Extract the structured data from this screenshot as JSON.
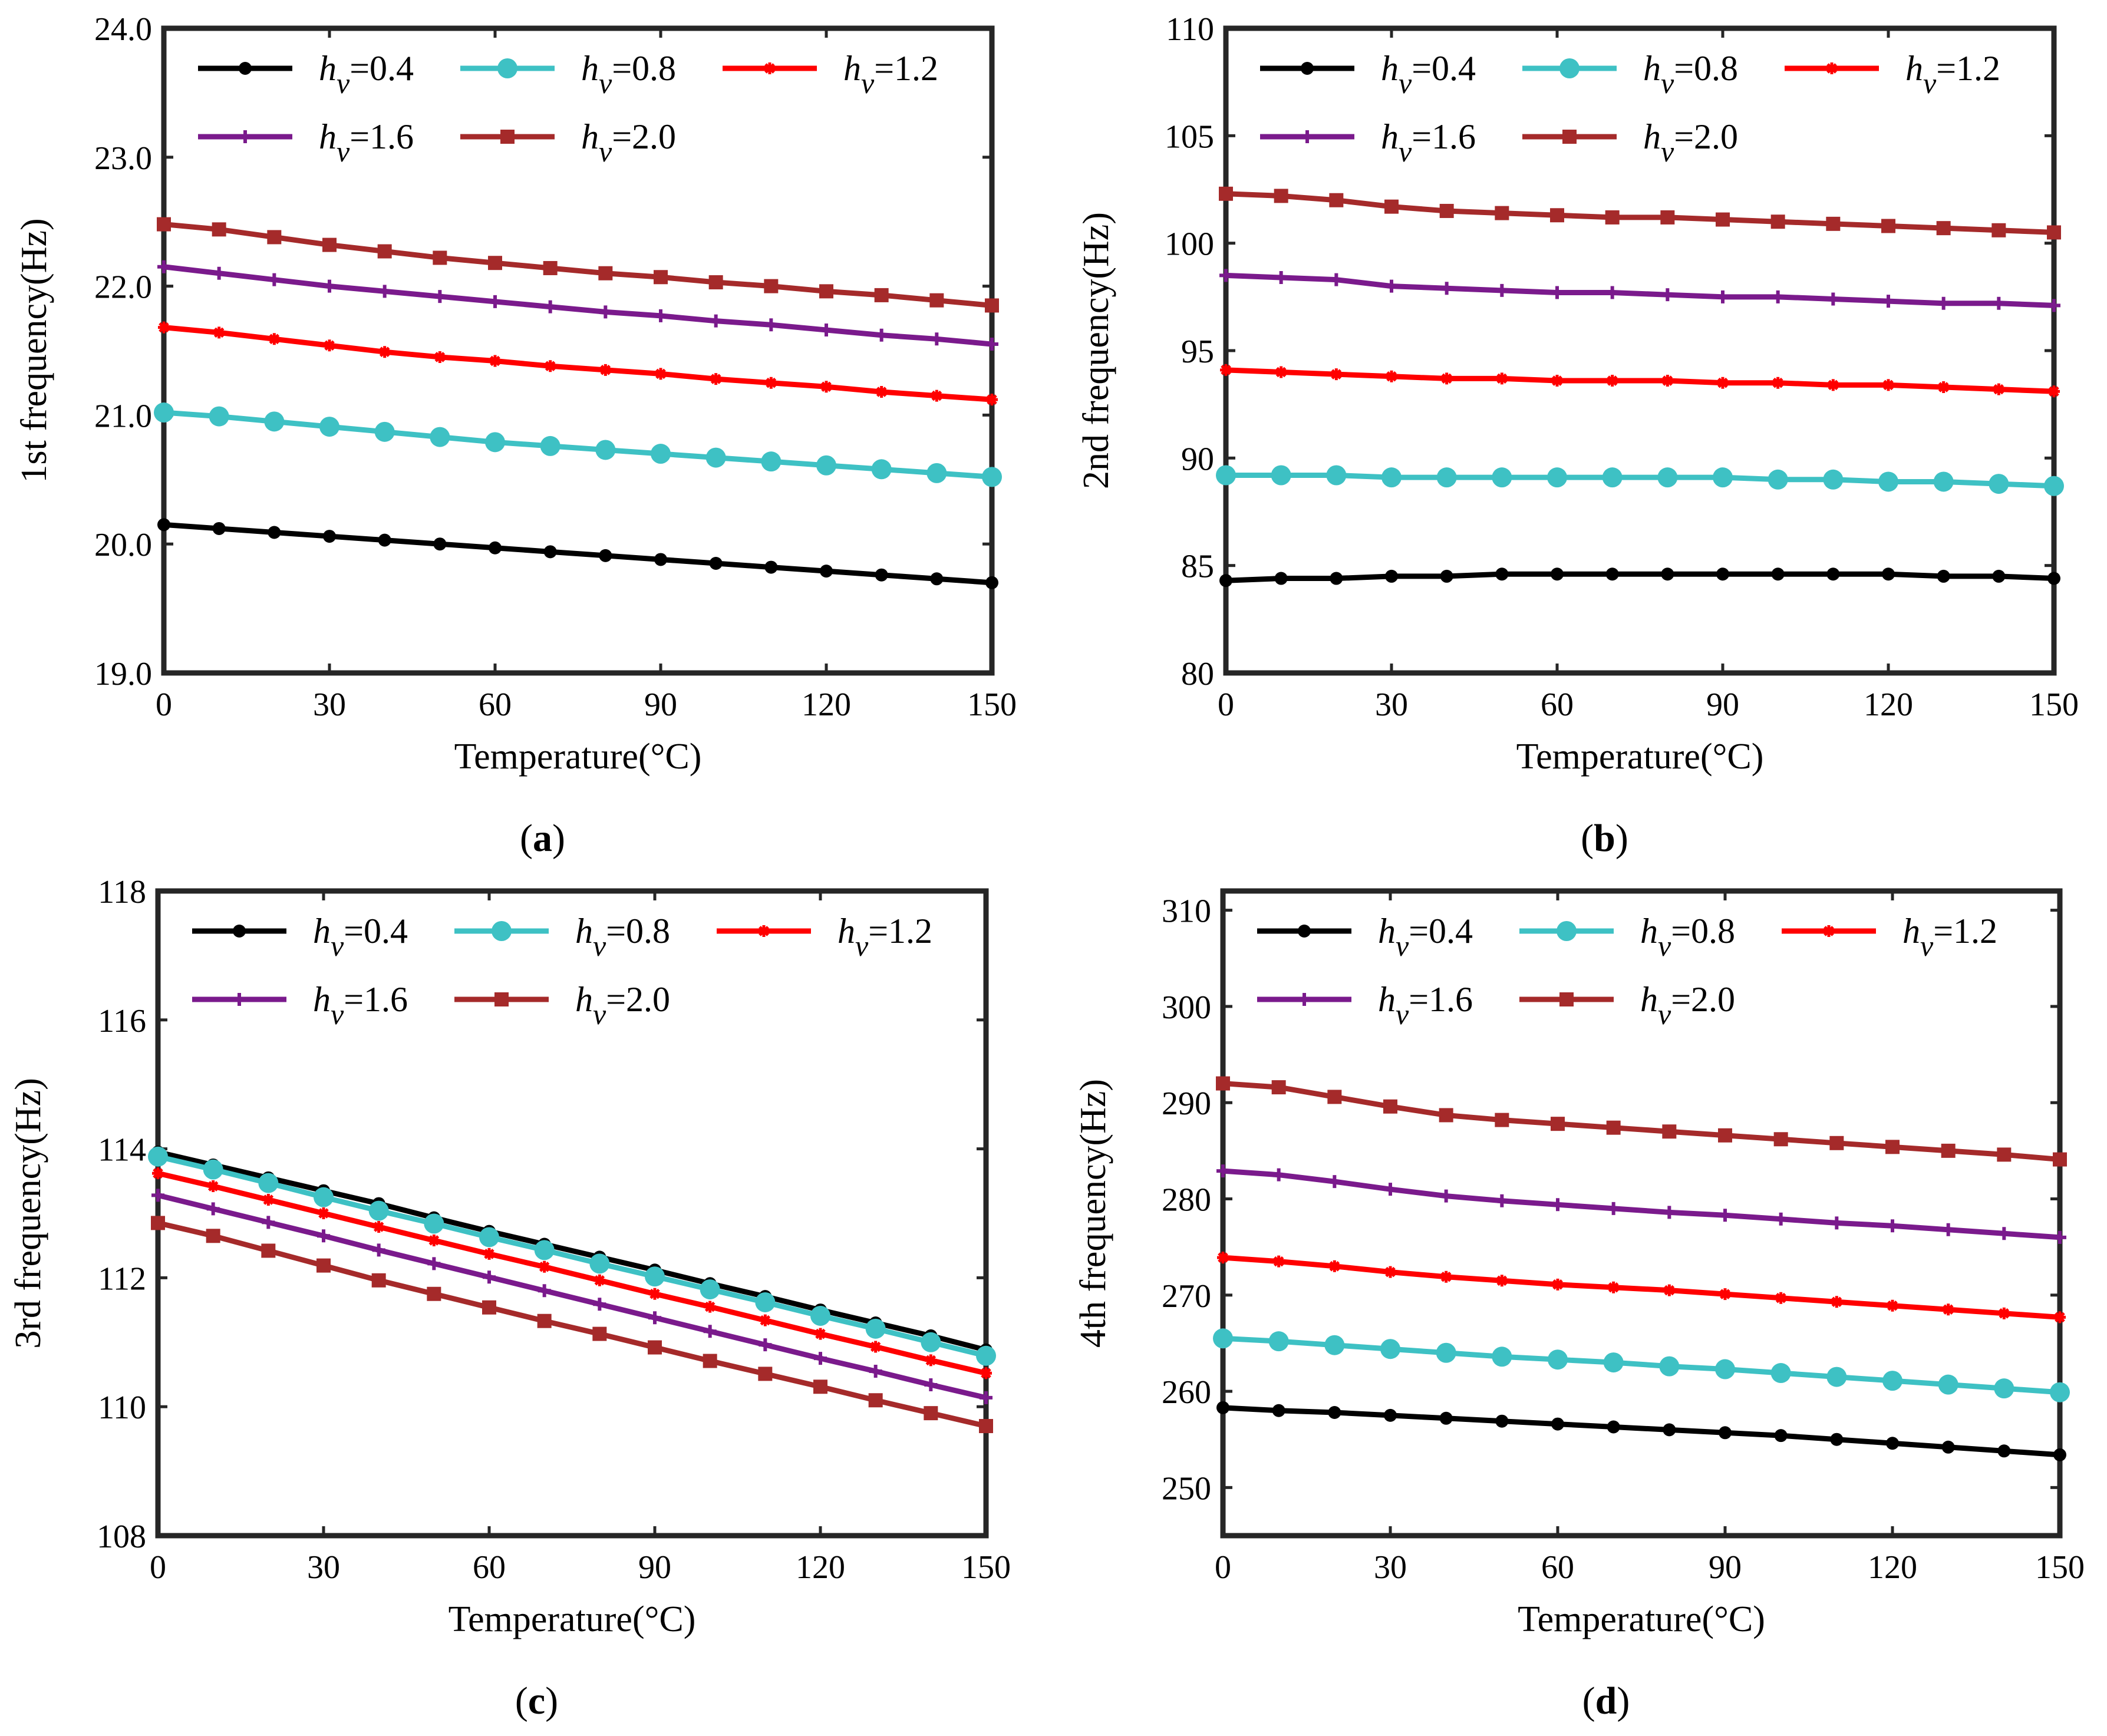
{
  "legend_prefix": "h",
  "legend_sub": "v",
  "series_styles": [
    {
      "name": "h_v=0.4",
      "color": "#000000",
      "marker": "dot"
    },
    {
      "name": "h_v=0.8",
      "color": "#3EC1C4",
      "marker": "circle"
    },
    {
      "name": "h_v=1.2",
      "color": "#FF0000",
      "marker": "star"
    },
    {
      "name": "h_v=1.6",
      "color": "#7A1A8C",
      "marker": "plus"
    },
    {
      "name": "h_v=2.0",
      "color": "#A52A2A",
      "marker": "square"
    }
  ],
  "chart_data": [
    {
      "type": "line",
      "panel_label": "a",
      "title": "",
      "xlabel": "Temperature(°C)",
      "ylabel": "1st frequency(Hz)",
      "xlim": [
        0,
        150
      ],
      "ylim": [
        19.0,
        24.0
      ],
      "xticks": [
        0,
        30,
        60,
        90,
        120,
        150
      ],
      "yticks": [
        19.0,
        20.0,
        21.0,
        22.0,
        23.0,
        24.0
      ],
      "ytick_labels": [
        "19.0",
        "20.0",
        "21.0",
        "22.0",
        "23.0",
        "24.0"
      ],
      "x": [
        0,
        10,
        20,
        30,
        40,
        50,
        60,
        70,
        80,
        90,
        100,
        110,
        120,
        130,
        140,
        150
      ],
      "series": [
        {
          "name": "=0.4",
          "values": [
            20.15,
            20.12,
            20.09,
            20.06,
            20.03,
            20.0,
            19.97,
            19.94,
            19.91,
            19.88,
            19.85,
            19.82,
            19.79,
            19.76,
            19.73,
            19.7
          ]
        },
        {
          "name": "=0.8",
          "values": [
            21.02,
            20.99,
            20.95,
            20.91,
            20.87,
            20.83,
            20.79,
            20.76,
            20.73,
            20.7,
            20.67,
            20.64,
            20.61,
            20.58,
            20.55,
            20.52
          ]
        },
        {
          "name": "=1.2",
          "values": [
            21.68,
            21.64,
            21.59,
            21.54,
            21.49,
            21.45,
            21.42,
            21.38,
            21.35,
            21.32,
            21.28,
            21.25,
            21.22,
            21.18,
            21.15,
            21.12
          ]
        },
        {
          "name": "=1.6",
          "values": [
            22.15,
            22.1,
            22.05,
            22.0,
            21.96,
            21.92,
            21.88,
            21.84,
            21.8,
            21.77,
            21.73,
            21.7,
            21.66,
            21.62,
            21.59,
            21.55
          ]
        },
        {
          "name": "=2.0",
          "values": [
            22.48,
            22.44,
            22.38,
            22.32,
            22.27,
            22.22,
            22.18,
            22.14,
            22.1,
            22.07,
            22.03,
            22.0,
            21.96,
            21.93,
            21.89,
            21.85
          ]
        }
      ]
    },
    {
      "type": "line",
      "panel_label": "b",
      "title": "",
      "xlabel": "Temperature(°C)",
      "ylabel": "2nd frequency(Hz)",
      "xlim": [
        0,
        150
      ],
      "ylim": [
        80,
        110
      ],
      "xticks": [
        0,
        30,
        60,
        90,
        120,
        150
      ],
      "yticks": [
        80,
        85,
        90,
        95,
        100,
        105,
        110
      ],
      "ytick_labels": [
        "80",
        "85",
        "90",
        "95",
        "100",
        "105",
        "110"
      ],
      "x": [
        0,
        10,
        20,
        30,
        40,
        50,
        60,
        70,
        80,
        90,
        100,
        110,
        120,
        130,
        140,
        150
      ],
      "series": [
        {
          "name": "=0.4",
          "values": [
            84.3,
            84.4,
            84.4,
            84.5,
            84.5,
            84.6,
            84.6,
            84.6,
            84.6,
            84.6,
            84.6,
            84.6,
            84.6,
            84.5,
            84.5,
            84.4
          ]
        },
        {
          "name": "=0.8",
          "values": [
            89.2,
            89.2,
            89.2,
            89.1,
            89.1,
            89.1,
            89.1,
            89.1,
            89.1,
            89.1,
            89.0,
            89.0,
            88.9,
            88.9,
            88.8,
            88.7
          ]
        },
        {
          "name": "=1.2",
          "values": [
            94.1,
            94.0,
            93.9,
            93.8,
            93.7,
            93.7,
            93.6,
            93.6,
            93.6,
            93.5,
            93.5,
            93.4,
            93.4,
            93.3,
            93.2,
            93.1
          ]
        },
        {
          "name": "=1.6",
          "values": [
            98.5,
            98.4,
            98.3,
            98.0,
            97.9,
            97.8,
            97.7,
            97.7,
            97.6,
            97.5,
            97.5,
            97.4,
            97.3,
            97.2,
            97.2,
            97.1
          ]
        },
        {
          "name": "=2.0",
          "values": [
            102.3,
            102.2,
            102.0,
            101.7,
            101.5,
            101.4,
            101.3,
            101.2,
            101.2,
            101.1,
            101.0,
            100.9,
            100.8,
            100.7,
            100.6,
            100.5
          ]
        }
      ]
    },
    {
      "type": "line",
      "panel_label": "c",
      "title": "",
      "xlabel": "Temperature(°C)",
      "ylabel": "3rd frequency(Hz)",
      "xlim": [
        0,
        150
      ],
      "ylim": [
        108,
        118
      ],
      "xticks": [
        0,
        30,
        60,
        90,
        120,
        150
      ],
      "yticks": [
        108,
        110,
        112,
        114,
        116,
        118
      ],
      "ytick_labels": [
        "108",
        "110",
        "112",
        "114",
        "116",
        "118"
      ],
      "x": [
        0,
        10,
        20,
        30,
        40,
        50,
        60,
        70,
        80,
        90,
        100,
        110,
        120,
        130,
        140,
        150
      ],
      "series": [
        {
          "name": "=0.4",
          "values": [
            113.95,
            113.75,
            113.55,
            113.35,
            113.15,
            112.93,
            112.72,
            112.52,
            112.32,
            112.12,
            111.91,
            111.71,
            111.5,
            111.3,
            111.1,
            110.88
          ]
        },
        {
          "name": "=0.8",
          "values": [
            113.88,
            113.68,
            113.47,
            113.25,
            113.04,
            112.84,
            112.63,
            112.43,
            112.22,
            112.02,
            111.82,
            111.62,
            111.41,
            111.21,
            111.0,
            110.79
          ]
        },
        {
          "name": "=1.2",
          "values": [
            113.62,
            113.42,
            113.21,
            113.0,
            112.79,
            112.58,
            112.37,
            112.17,
            111.96,
            111.75,
            111.55,
            111.34,
            111.13,
            110.93,
            110.72,
            110.52
          ]
        },
        {
          "name": "=1.6",
          "values": [
            113.28,
            113.07,
            112.86,
            112.65,
            112.43,
            112.22,
            112.01,
            111.8,
            111.59,
            111.38,
            111.17,
            110.96,
            110.75,
            110.55,
            110.34,
            110.14
          ]
        },
        {
          "name": "=2.0",
          "values": [
            112.85,
            112.65,
            112.42,
            112.19,
            111.96,
            111.75,
            111.54,
            111.33,
            111.13,
            110.92,
            110.71,
            110.51,
            110.31,
            110.1,
            109.9,
            109.7
          ]
        }
      ]
    },
    {
      "type": "line",
      "panel_label": "d",
      "title": "",
      "xlabel": "Temperature(°C)",
      "ylabel": "4th frequency(Hz)",
      "xlim": [
        0,
        150
      ],
      "ylim": [
        245,
        312
      ],
      "xticks": [
        0,
        30,
        60,
        90,
        120,
        150
      ],
      "yticks": [
        250,
        260,
        270,
        280,
        290,
        300,
        310
      ],
      "ytick_labels": [
        "250",
        "260",
        "270",
        "280",
        "290",
        "300",
        "310"
      ],
      "x": [
        0,
        10,
        20,
        30,
        40,
        50,
        60,
        70,
        80,
        90,
        100,
        110,
        120,
        130,
        140,
        150
      ],
      "series": [
        {
          "name": "=0.4",
          "values": [
            258.3,
            258.0,
            257.8,
            257.5,
            257.2,
            256.9,
            256.6,
            256.3,
            256.0,
            255.7,
            255.4,
            255.0,
            254.6,
            254.2,
            253.8,
            253.4
          ]
        },
        {
          "name": "=0.8",
          "values": [
            265.5,
            265.2,
            264.8,
            264.4,
            264.0,
            263.6,
            263.3,
            263.0,
            262.6,
            262.3,
            261.9,
            261.5,
            261.1,
            260.7,
            260.3,
            259.9
          ]
        },
        {
          "name": "=1.2",
          "values": [
            273.9,
            273.5,
            273.0,
            272.4,
            271.9,
            271.5,
            271.1,
            270.8,
            270.5,
            270.1,
            269.7,
            269.3,
            268.9,
            268.5,
            268.1,
            267.7
          ]
        },
        {
          "name": "=1.6",
          "values": [
            282.9,
            282.5,
            281.8,
            281.0,
            280.3,
            279.8,
            279.4,
            279.0,
            278.6,
            278.3,
            277.9,
            277.5,
            277.2,
            276.8,
            276.4,
            276.0
          ]
        },
        {
          "name": "=2.0",
          "values": [
            292.0,
            291.6,
            290.6,
            289.6,
            288.7,
            288.2,
            287.8,
            287.4,
            287.0,
            286.6,
            286.2,
            285.8,
            285.4,
            285.0,
            284.6,
            284.1
          ]
        }
      ]
    }
  ]
}
